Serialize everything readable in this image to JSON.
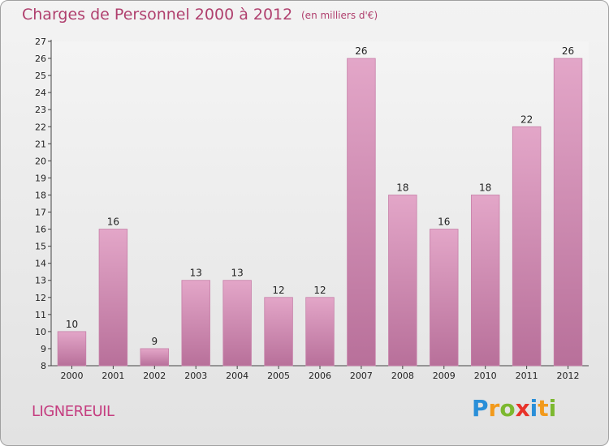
{
  "header": {
    "title": "Charges de Personnel 2000 à 2012",
    "subtitle": "(en milliers d'€)"
  },
  "commune": "LIGNEREUIL",
  "logo": {
    "text": "Proxiti",
    "letters": [
      {
        "ch": "P",
        "color": "#2a8fd8"
      },
      {
        "ch": "r",
        "color": "#f29a1c"
      },
      {
        "ch": "o",
        "color": "#7cb82f"
      },
      {
        "ch": "x",
        "color": "#e8332a"
      },
      {
        "ch": "i",
        "color": "#2a8fd8"
      },
      {
        "ch": "t",
        "color": "#f29a1c"
      },
      {
        "ch": "i",
        "color": "#7cb82f"
      }
    ]
  },
  "chart_data": {
    "type": "bar",
    "title": "Charges de Personnel 2000 à 2012",
    "subtitle": "(en milliers d'€)",
    "categories": [
      "2000",
      "2001",
      "2002",
      "2003",
      "2004",
      "2005",
      "2006",
      "2007",
      "2008",
      "2009",
      "2010",
      "2011",
      "2012"
    ],
    "values": [
      10,
      16,
      9,
      13,
      13,
      12,
      12,
      26,
      18,
      16,
      18,
      22,
      26
    ],
    "ylim": [
      8,
      27
    ],
    "yticks": [
      8,
      9,
      10,
      11,
      12,
      13,
      14,
      15,
      16,
      17,
      18,
      19,
      20,
      21,
      22,
      23,
      24,
      25,
      26,
      27
    ],
    "grid": false,
    "bar_color": "#d98fba"
  }
}
